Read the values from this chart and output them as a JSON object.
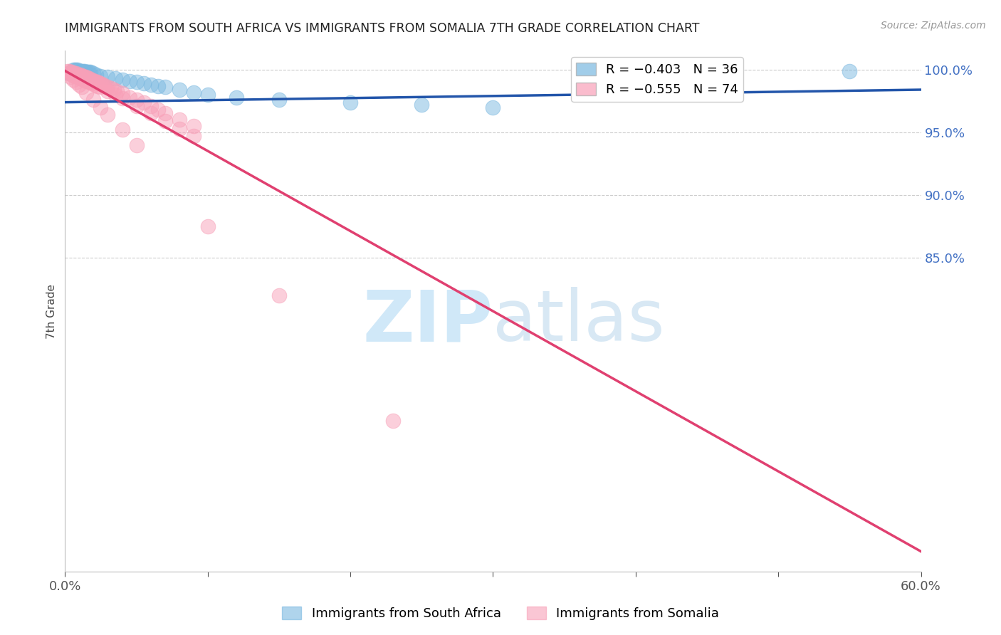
{
  "title": "IMMIGRANTS FROM SOUTH AFRICA VS IMMIGRANTS FROM SOMALIA 7TH GRADE CORRELATION CHART",
  "source": "Source: ZipAtlas.com",
  "ylabel": "7th Grade",
  "ytick_labels": [
    "100.0%",
    "95.0%",
    "90.0%",
    "85.0%"
  ],
  "ytick_values": [
    1.0,
    0.95,
    0.9,
    0.85
  ],
  "xmin": 0.0,
  "xmax": 0.6,
  "ymin": 0.6,
  "ymax": 1.015,
  "legend_blue_r": "R = −0.403",
  "legend_blue_n": "N = 36",
  "legend_pink_r": "R = −0.555",
  "legend_pink_n": "N = 74",
  "blue_color": "#7ab8e0",
  "pink_color": "#f8a0b8",
  "trend_blue_color": "#2255aa",
  "trend_pink_color": "#e04070",
  "watermark_zip": "ZIP",
  "watermark_atlas": "atlas",
  "watermark_color": "#d0e8f8",
  "blue_trend_x0": 0.0,
  "blue_trend_y0": 0.974,
  "blue_trend_x1": 0.6,
  "blue_trend_y1": 0.984,
  "pink_trend_x0": 0.0,
  "pink_trend_y0": 0.999,
  "pink_trend_x1": 0.6,
  "pink_trend_y1": 0.616,
  "blue_scatter_x": [
    0.003,
    0.005,
    0.006,
    0.007,
    0.008,
    0.009,
    0.01,
    0.011,
    0.012,
    0.013,
    0.014,
    0.015,
    0.016,
    0.017,
    0.018,
    0.02,
    0.022,
    0.025,
    0.03,
    0.035,
    0.04,
    0.045,
    0.05,
    0.055,
    0.06,
    0.065,
    0.07,
    0.08,
    0.09,
    0.1,
    0.12,
    0.15,
    0.2,
    0.25,
    0.3,
    0.55
  ],
  "blue_scatter_y": [
    0.997,
    0.998,
    1.0,
    1.0,
    1.0,
    1.0,
    0.999,
    0.999,
    0.999,
    0.999,
    0.999,
    0.998,
    0.998,
    0.998,
    0.998,
    0.997,
    0.996,
    0.995,
    0.994,
    0.993,
    0.992,
    0.991,
    0.99,
    0.989,
    0.988,
    0.987,
    0.986,
    0.984,
    0.982,
    0.98,
    0.978,
    0.976,
    0.974,
    0.972,
    0.97,
    0.999
  ],
  "pink_scatter_x": [
    0.002,
    0.003,
    0.004,
    0.005,
    0.006,
    0.007,
    0.008,
    0.009,
    0.01,
    0.011,
    0.012,
    0.013,
    0.014,
    0.015,
    0.016,
    0.017,
    0.018,
    0.019,
    0.02,
    0.021,
    0.022,
    0.023,
    0.024,
    0.025,
    0.026,
    0.027,
    0.028,
    0.03,
    0.032,
    0.034,
    0.036,
    0.04,
    0.045,
    0.05,
    0.055,
    0.06,
    0.065,
    0.07,
    0.08,
    0.09,
    0.003,
    0.005,
    0.007,
    0.009,
    0.011,
    0.013,
    0.015,
    0.017,
    0.019,
    0.021,
    0.023,
    0.025,
    0.03,
    0.035,
    0.04,
    0.05,
    0.06,
    0.07,
    0.08,
    0.09,
    0.004,
    0.006,
    0.008,
    0.01,
    0.012,
    0.015,
    0.02,
    0.025,
    0.03,
    0.04,
    0.05,
    0.1,
    0.15,
    0.23
  ],
  "pink_scatter_y": [
    0.999,
    0.999,
    0.998,
    0.998,
    0.997,
    0.997,
    0.997,
    0.996,
    0.996,
    0.996,
    0.995,
    0.995,
    0.994,
    0.994,
    0.993,
    0.993,
    0.992,
    0.992,
    0.991,
    0.991,
    0.99,
    0.99,
    0.989,
    0.989,
    0.988,
    0.988,
    0.987,
    0.986,
    0.985,
    0.984,
    0.983,
    0.981,
    0.978,
    0.976,
    0.974,
    0.971,
    0.968,
    0.965,
    0.96,
    0.955,
    0.997,
    0.996,
    0.995,
    0.994,
    0.993,
    0.992,
    0.991,
    0.99,
    0.989,
    0.988,
    0.987,
    0.986,
    0.983,
    0.98,
    0.977,
    0.971,
    0.965,
    0.959,
    0.953,
    0.947,
    0.994,
    0.992,
    0.99,
    0.988,
    0.986,
    0.982,
    0.976,
    0.97,
    0.964,
    0.952,
    0.94,
    0.875,
    0.82,
    0.72
  ]
}
